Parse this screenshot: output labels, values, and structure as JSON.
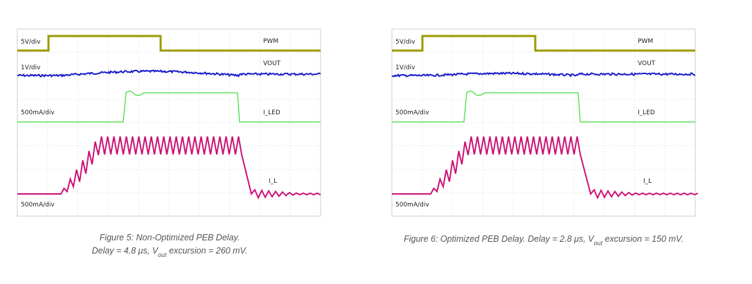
{
  "figures": [
    {
      "channels": [
        {
          "scale": "5V/div",
          "name": "PWM"
        },
        {
          "scale": "1V/div",
          "name": "VOUT"
        },
        {
          "scale": "500mA/div",
          "name": "I_LED"
        },
        {
          "scale": "500mA/div",
          "name": "I_L"
        }
      ],
      "caption": {
        "line1": "Figure 5: Non-Optimized PEB Delay.",
        "line2": [
          "Delay = 4.8 μs, V",
          "out",
          " excursion = 260 mV."
        ]
      }
    },
    {
      "channels": [
        {
          "scale": "5V/div",
          "name": "PWM"
        },
        {
          "scale": "1V/div",
          "name": "VOUT"
        },
        {
          "scale": "500mA/div",
          "name": "I_LED"
        },
        {
          "scale": "500mA/div",
          "name": "I_L"
        }
      ],
      "caption": {
        "line2": [
          "Figure 6: Optimized PEB Delay. Delay = 2.8 μs, V",
          "out",
          " excursion = 150 mV."
        ]
      }
    }
  ]
}
